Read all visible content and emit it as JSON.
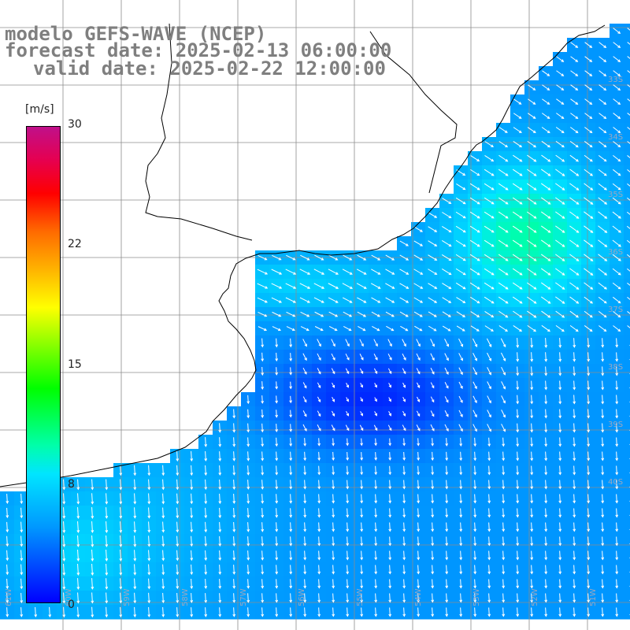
{
  "title": {
    "line1": "modelo GEFS-WAVE (NCEP)",
    "line2": "forecast date: 2025-02-13 06:00:00",
    "line3": "valid date: 2025-02-22 12:00:00"
  },
  "colorbar": {
    "unit": "[m/s]",
    "ticks": [
      "30",
      "22",
      "15",
      "8",
      "0"
    ],
    "tick_values": [
      30,
      22,
      15,
      8,
      0
    ],
    "range": [
      0,
      30
    ]
  },
  "map": {
    "background": "#ffffff",
    "grid_color": "#8c8c8c",
    "coast_color": "#000000",
    "arrow_color": "#ffffff",
    "lat_labels": [
      "33S",
      "34S",
      "35S",
      "36S",
      "37S",
      "38S",
      "39S",
      "40S"
    ],
    "lon_labels": [
      "61W",
      "60W",
      "59W",
      "58W",
      "57W",
      "56W",
      "55W",
      "54W",
      "53W",
      "52W",
      "51W"
    ]
  }
}
